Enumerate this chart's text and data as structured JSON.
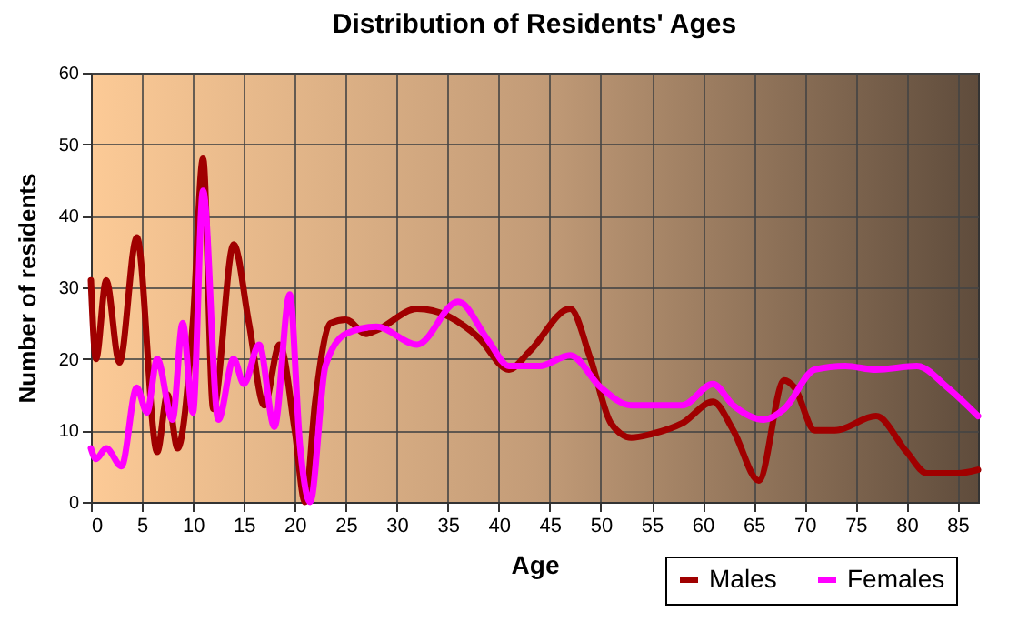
{
  "chart_data": {
    "type": "line",
    "title": "Distribution of Residents' Ages",
    "xlabel": "Age",
    "ylabel": "Number of residents",
    "xlim": [
      0,
      87
    ],
    "xticks": [
      0,
      5,
      10,
      15,
      20,
      25,
      30,
      35,
      40,
      45,
      50,
      55,
      60,
      65,
      70,
      75,
      80,
      85
    ],
    "ylim": [
      0,
      60
    ],
    "yticks": [
      0,
      10,
      20,
      30,
      40,
      50,
      60
    ],
    "grid": true,
    "legend": "bottom right",
    "marker": "none",
    "line_style": "solid",
    "series": [
      {
        "name": "Males",
        "color": "#a00000",
        "x": [
          0,
          0.5,
          1.5,
          2.8,
          4.5,
          6.5,
          7.5,
          8.5,
          10,
          11,
          12,
          14,
          15.5,
          17,
          18.5,
          20,
          21,
          22,
          23.5,
          25,
          27,
          28,
          32,
          35,
          38,
          41,
          43,
          47,
          49,
          51,
          53,
          55,
          58,
          61,
          63,
          65.5,
          68,
          69,
          71,
          73,
          77,
          80,
          82,
          85,
          87
        ],
        "values": [
          31,
          20,
          31,
          19.5,
          37,
          7,
          15,
          7.5,
          25,
          48,
          13,
          36,
          25,
          13.5,
          22,
          10,
          0,
          14,
          25,
          25.5,
          23.5,
          24,
          27,
          26,
          23,
          18.5,
          21,
          27,
          20,
          11,
          9,
          9.5,
          11,
          14,
          10,
          3,
          17,
          16,
          10,
          10,
          12,
          7,
          4,
          4,
          4.5
        ]
      },
      {
        "name": "Females",
        "color": "#ff00ff",
        "x": [
          0,
          0.5,
          1.5,
          3,
          4.5,
          5.5,
          6.5,
          8,
          9,
          10,
          11,
          12.5,
          14,
          15,
          16.5,
          18,
          19.5,
          20.5,
          21.5,
          23,
          25,
          28,
          32,
          36,
          39,
          41,
          44,
          47,
          50,
          53,
          56,
          58,
          61,
          63,
          66,
          68,
          71,
          74,
          77,
          81,
          84,
          87
        ],
        "values": [
          7.5,
          6,
          7.5,
          5,
          16,
          12.5,
          20,
          11.5,
          25,
          12.5,
          43.5,
          11.5,
          20,
          16.5,
          22,
          10.5,
          29,
          8,
          0,
          19,
          23.5,
          24.5,
          22,
          28,
          22.5,
          19,
          19,
          20.5,
          16,
          13.5,
          13.5,
          13.5,
          16.5,
          13.5,
          11.5,
          13,
          18.5,
          19,
          18.5,
          19,
          16,
          12
        ]
      }
    ]
  }
}
